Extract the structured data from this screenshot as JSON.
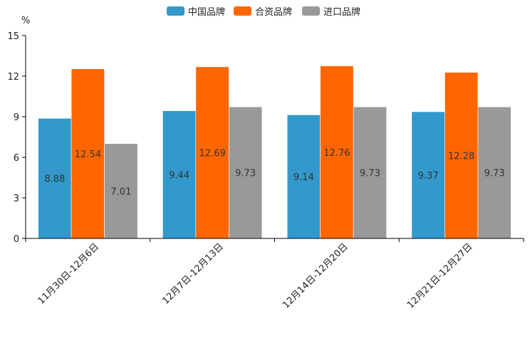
{
  "chart_data": {
    "type": "bar",
    "title": "",
    "xlabel": "",
    "ylabel": "%",
    "ylim": [
      0,
      15
    ],
    "yticks": [
      0,
      3,
      6,
      9,
      12,
      15
    ],
    "grid": false,
    "legend_position": "top-center",
    "categories": [
      "11月30日-12月6日",
      "12月7日-12月13日",
      "12月14日-12月20日",
      "12月21日-12月27日"
    ],
    "series": [
      {
        "name": "中国品牌",
        "color": "#3399cc",
        "values": [
          8.88,
          9.44,
          9.14,
          9.37
        ],
        "labels": [
          "8.88",
          "9.44",
          "9.14",
          "9.37"
        ]
      },
      {
        "name": "合资品牌",
        "color": "#ff6600",
        "values": [
          12.54,
          12.69,
          12.76,
          12.28
        ],
        "labels": [
          "12.54",
          "12.69",
          "12.76",
          "12.28"
        ]
      },
      {
        "name": "进口品牌",
        "color": "#999999",
        "values": [
          7.01,
          9.73,
          9.73,
          9.73
        ],
        "labels": [
          "7.01",
          "9.73",
          "9.73",
          "9.73"
        ]
      }
    ]
  }
}
